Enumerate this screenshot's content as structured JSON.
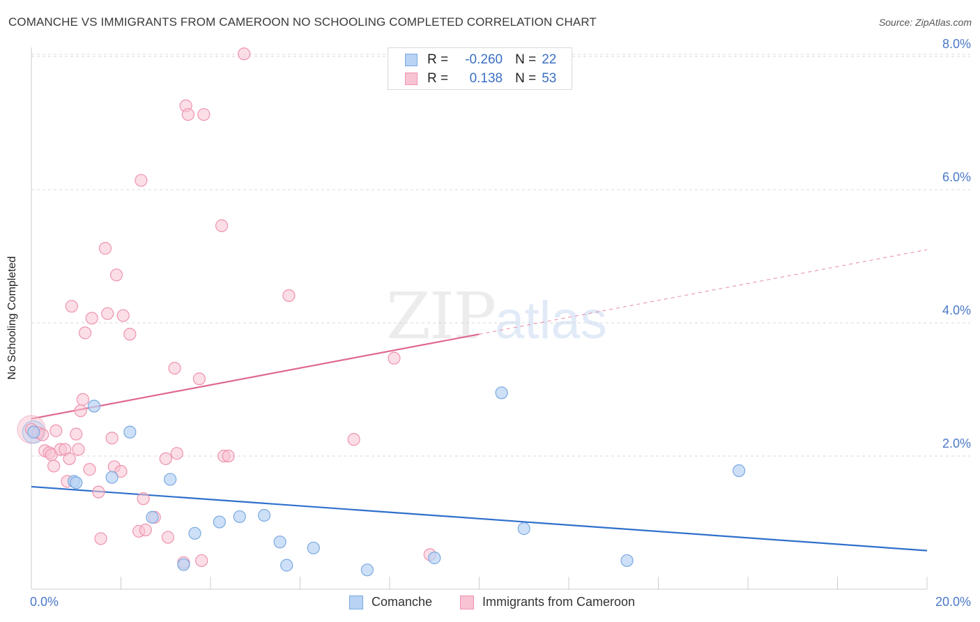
{
  "title": "COMANCHE VS IMMIGRANTS FROM CAMEROON NO SCHOOLING COMPLETED CORRELATION CHART",
  "source": "Source: ZipAtlas.com",
  "watermark": {
    "zip": "ZIP",
    "atlas": "atlas"
  },
  "legend_top": {
    "rows": [
      {
        "r_label": "R =",
        "r_value": "-0.260",
        "n_label": "N =",
        "n_value": "22"
      },
      {
        "r_label": "R =",
        "r_value": "0.138",
        "n_label": "N =",
        "n_value": "53"
      }
    ]
  },
  "legend_bottom": [
    "Comanche",
    "Immigrants from Cameroon"
  ],
  "colors": {
    "comanche_fill": "#b8d3f3",
    "comanche_stroke": "#7aa8e0",
    "comanche_line": "#2f6fcc",
    "cameroon_fill": "#f8c3d2",
    "cameroon_stroke": "#ee93ae",
    "cameroon_line": "#e06890",
    "tick_label": "#4a78c8",
    "grid": "#d9d9d9"
  },
  "chart_data": {
    "type": "scatter",
    "title": "COMANCHE VS IMMIGRANTS FROM CAMEROON NO SCHOOLING COMPLETED CORRELATION CHART",
    "xlabel": "",
    "ylabel": "No Schooling Completed",
    "xlim": [
      0,
      20
    ],
    "ylim": [
      0,
      8.2
    ],
    "x_tick_labels": [
      "0.0%",
      "20.0%"
    ],
    "y_ticks": [
      2,
      4,
      6,
      8
    ],
    "y_tick_labels": [
      "2.0%",
      "4.0%",
      "6.0%",
      "8.0%"
    ],
    "grid": "horizontal dashed",
    "legend": "top-center",
    "series": [
      {
        "name": "Comanche",
        "r": -0.26,
        "n": 22,
        "trend": {
          "x0": 0,
          "y0": 1.54,
          "x1": 20,
          "y1": 0.58
        },
        "points": [
          [
            0.05,
            2.36
          ],
          [
            0.95,
            1.62
          ],
          [
            1.0,
            1.6
          ],
          [
            1.4,
            2.75
          ],
          [
            2.2,
            2.36
          ],
          [
            1.8,
            1.68
          ],
          [
            3.1,
            1.65
          ],
          [
            2.7,
            1.08
          ],
          [
            3.4,
            0.37
          ],
          [
            3.65,
            0.84
          ],
          [
            4.2,
            1.01
          ],
          [
            4.65,
            1.09
          ],
          [
            5.2,
            1.11
          ],
          [
            5.55,
            0.71
          ],
          [
            5.7,
            0.36
          ],
          [
            6.3,
            0.62
          ],
          [
            7.5,
            0.29
          ],
          [
            9.0,
            0.47
          ],
          [
            10.5,
            2.95
          ],
          [
            11.0,
            0.91
          ],
          [
            13.3,
            0.43
          ],
          [
            15.8,
            1.78
          ]
        ]
      },
      {
        "name": "Immigrants from Cameroon",
        "r": 0.138,
        "n": 53,
        "trend": {
          "x0": 0,
          "y0": 2.56,
          "x1": 10,
          "y1": 3.83
        },
        "trend_extension": {
          "x0": 10,
          "y0": 3.83,
          "x1": 20,
          "y1": 5.1
        },
        "points": [
          [
            0.0,
            2.4
          ],
          [
            0.15,
            2.35
          ],
          [
            0.25,
            2.32
          ],
          [
            0.3,
            2.08
          ],
          [
            0.4,
            2.05
          ],
          [
            0.45,
            2.02
          ],
          [
            0.5,
            1.85
          ],
          [
            0.55,
            2.38
          ],
          [
            0.65,
            2.1
          ],
          [
            0.75,
            2.1
          ],
          [
            0.8,
            1.62
          ],
          [
            0.85,
            1.96
          ],
          [
            0.9,
            4.25
          ],
          [
            1.0,
            2.33
          ],
          [
            1.05,
            2.1
          ],
          [
            1.1,
            2.68
          ],
          [
            1.15,
            2.85
          ],
          [
            1.2,
            3.85
          ],
          [
            1.3,
            1.8
          ],
          [
            1.35,
            4.07
          ],
          [
            1.5,
            1.46
          ],
          [
            1.55,
            0.76
          ],
          [
            1.65,
            5.12
          ],
          [
            1.7,
            4.14
          ],
          [
            1.8,
            2.27
          ],
          [
            1.85,
            1.84
          ],
          [
            1.9,
            4.72
          ],
          [
            2.0,
            1.77
          ],
          [
            2.05,
            4.11
          ],
          [
            2.2,
            3.83
          ],
          [
            2.4,
            0.87
          ],
          [
            2.45,
            6.14
          ],
          [
            2.5,
            1.36
          ],
          [
            2.55,
            0.89
          ],
          [
            2.75,
            1.08
          ],
          [
            3.0,
            1.96
          ],
          [
            3.05,
            0.78
          ],
          [
            3.2,
            3.32
          ],
          [
            3.25,
            2.04
          ],
          [
            3.4,
            0.4
          ],
          [
            3.45,
            7.26
          ],
          [
            3.5,
            7.13
          ],
          [
            3.75,
            3.16
          ],
          [
            3.8,
            0.43
          ],
          [
            3.85,
            7.13
          ],
          [
            4.25,
            5.46
          ],
          [
            4.3,
            2.0
          ],
          [
            4.4,
            2.0
          ],
          [
            4.75,
            8.04
          ],
          [
            5.75,
            4.41
          ],
          [
            7.2,
            2.25
          ],
          [
            8.1,
            3.47
          ],
          [
            8.9,
            0.52
          ]
        ]
      }
    ]
  }
}
